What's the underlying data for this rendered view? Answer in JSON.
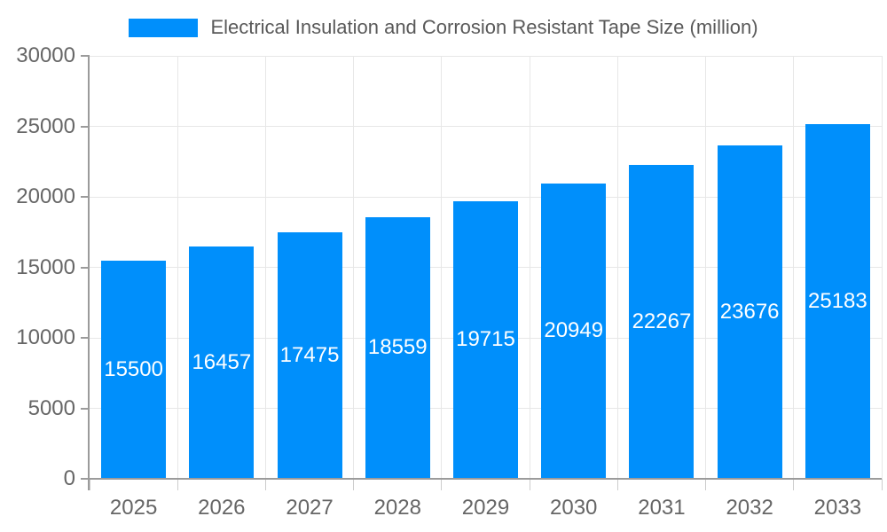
{
  "chart_data": {
    "type": "bar",
    "title": "Electrical Insulation and Corrosion Resistant Tape Size (million)",
    "categories": [
      "2025",
      "2026",
      "2027",
      "2028",
      "2029",
      "2030",
      "2031",
      "2032",
      "2033"
    ],
    "values": [
      15500,
      16457,
      17475,
      18559,
      19715,
      20949,
      22267,
      23676,
      25183
    ],
    "series_name": "Electrical Insulation and Corrosion Resistant Tape Size (million)",
    "xlabel": "",
    "ylabel": "",
    "ylim": [
      0,
      30000
    ],
    "yticks": [
      0,
      5000,
      10000,
      15000,
      20000,
      25000,
      30000
    ],
    "grid": "horizontal-and-vertical",
    "legend_position": "top",
    "value_labels": "inside-center",
    "colors": {
      "bar": "#008FFB",
      "grid": "#e7e7e7",
      "axis": "#9b9b9b",
      "boundary_tick": "#cccccc",
      "axis_text": "#666666",
      "legend_text": "#595959",
      "value_label_text": "#ffffff",
      "background": "#ffffff"
    }
  }
}
